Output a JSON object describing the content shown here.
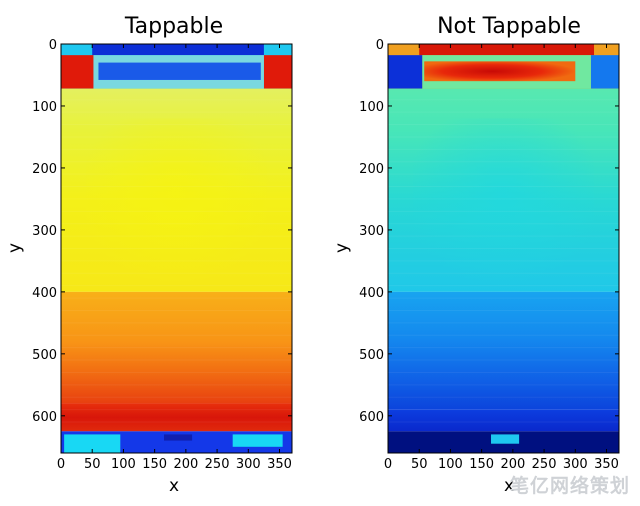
{
  "chart_data": [
    {
      "type": "heatmap",
      "title": "Tappable",
      "xlabel": "x",
      "ylabel": "y",
      "xlim": [
        0,
        370
      ],
      "ylim": [
        660,
        0
      ],
      "xticks": [
        0,
        50,
        100,
        150,
        200,
        250,
        300,
        350
      ],
      "yticks": [
        0,
        100,
        200,
        300,
        400,
        500,
        600
      ],
      "colormap": "jet",
      "colors": {
        "top_bar": "#1fc8f0",
        "top_bar_inner": "#0c2fd6",
        "corner_red": "#e01a0a",
        "band_blue": "#1a5ae8",
        "body_top": "#e8f044",
        "body_mid": "#f2f018",
        "body_low": "#f89a14",
        "body_bottom": "#d8140a",
        "nav_bar": "#1438e8",
        "nav_bright": "#18d8f4"
      }
    },
    {
      "type": "heatmap",
      "title": "Not Tappable",
      "xlabel": "x",
      "ylabel": "y",
      "xlim": [
        0,
        370
      ],
      "ylim": [
        660,
        0
      ],
      "xticks": [
        0,
        50,
        100,
        150,
        200,
        250,
        300,
        350
      ],
      "yticks": [
        0,
        100,
        200,
        300,
        400,
        500,
        600
      ],
      "colormap": "jet",
      "colors": {
        "top_bar": "#f0a020",
        "top_bar_inner": "#d81808",
        "corner_blue": "#0c30d8",
        "band_red": "#e8280a",
        "body_top": "#50e8b0",
        "body_mid": "#20d0e8",
        "body_low": "#1488ee",
        "body_bottom": "#0a32d8",
        "nav_bar": "#001080",
        "nav_bright": "#1ec8f0"
      }
    }
  ],
  "watermark": "笔亿网络策划"
}
